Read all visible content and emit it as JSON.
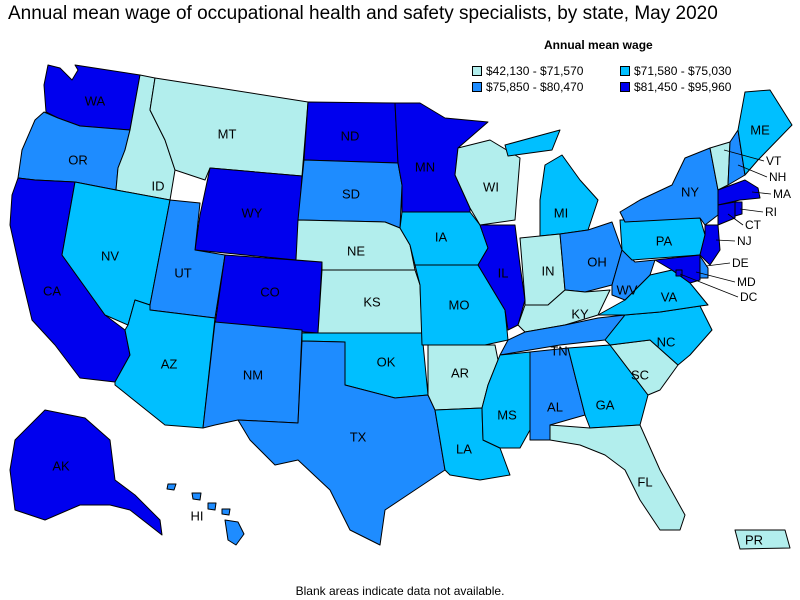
{
  "title": "Annual mean wage of occupational health and safety specialists, by state, May 2020",
  "legend": {
    "title": "Annual mean wage",
    "items": [
      {
        "label": "$42,130 - $71,570",
        "color": "#b2eeed"
      },
      {
        "label": "$71,580 - $75,030",
        "color": "#00bfff"
      },
      {
        "label": "$75,850 - $80,470",
        "color": "#1e8cff"
      },
      {
        "label": "$81,450 - $95,960",
        "color": "#0000ee"
      }
    ]
  },
  "footnote": "Blank areas indicate data not available.",
  "states": {
    "WA": {
      "label": "WA",
      "class": 3
    },
    "OR": {
      "label": "OR",
      "class": 2
    },
    "CA": {
      "label": "CA",
      "class": 3
    },
    "ID": {
      "label": "ID",
      "class": 0
    },
    "NV": {
      "label": "NV",
      "class": 1
    },
    "MT": {
      "label": "MT",
      "class": 0
    },
    "WY": {
      "label": "WY",
      "class": 3
    },
    "UT": {
      "label": "UT",
      "class": 2
    },
    "AZ": {
      "label": "AZ",
      "class": 1
    },
    "CO": {
      "label": "CO",
      "class": 3
    },
    "NM": {
      "label": "NM",
      "class": 2
    },
    "ND": {
      "label": "ND",
      "class": 3
    },
    "SD": {
      "label": "SD",
      "class": 2
    },
    "NE": {
      "label": "NE",
      "class": 0
    },
    "KS": {
      "label": "KS",
      "class": 0
    },
    "OK": {
      "label": "OK",
      "class": 1
    },
    "TX": {
      "label": "TX",
      "class": 2
    },
    "MN": {
      "label": "MN",
      "class": 3
    },
    "IA": {
      "label": "IA",
      "class": 1
    },
    "MO": {
      "label": "MO",
      "class": 1
    },
    "AR": {
      "label": "AR",
      "class": 0
    },
    "LA": {
      "label": "LA",
      "class": 1
    },
    "WI": {
      "label": "WI",
      "class": 0
    },
    "IL": {
      "label": "IL",
      "class": 3
    },
    "MI": {
      "label": "MI",
      "class": 1
    },
    "IN": {
      "label": "IN",
      "class": 0
    },
    "OH": {
      "label": "OH",
      "class": 2
    },
    "KY": {
      "label": "KY",
      "class": 0
    },
    "TN": {
      "label": "TN",
      "class": 2
    },
    "MS": {
      "label": "MS",
      "class": 1
    },
    "AL": {
      "label": "AL",
      "class": 2
    },
    "GA": {
      "label": "GA",
      "class": 1
    },
    "FL": {
      "label": "FL",
      "class": 0
    },
    "SC": {
      "label": "SC",
      "class": 0
    },
    "NC": {
      "label": "NC",
      "class": 1
    },
    "VA": {
      "label": "VA",
      "class": 1
    },
    "WV": {
      "label": "WV",
      "class": 2
    },
    "PA": {
      "label": "PA",
      "class": 1
    },
    "NY": {
      "label": "NY",
      "class": 2
    },
    "VT": {
      "label": "VT",
      "class": 0
    },
    "NH": {
      "label": "NH",
      "class": 2
    },
    "ME": {
      "label": "ME",
      "class": 1
    },
    "MA": {
      "label": "MA",
      "class": 3
    },
    "RI": {
      "label": "RI",
      "class": 3
    },
    "CT": {
      "label": "CT",
      "class": 3
    },
    "NJ": {
      "label": "NJ",
      "class": 3
    },
    "DE": {
      "label": "DE",
      "class": 2
    },
    "MD": {
      "label": "MD",
      "class": 3
    },
    "DC": {
      "label": "DC",
      "class": 3
    },
    "AK": {
      "label": "AK",
      "class": 3
    },
    "HI": {
      "label": "HI",
      "class": 2
    },
    "PR": {
      "label": "PR",
      "class": 0
    }
  }
}
